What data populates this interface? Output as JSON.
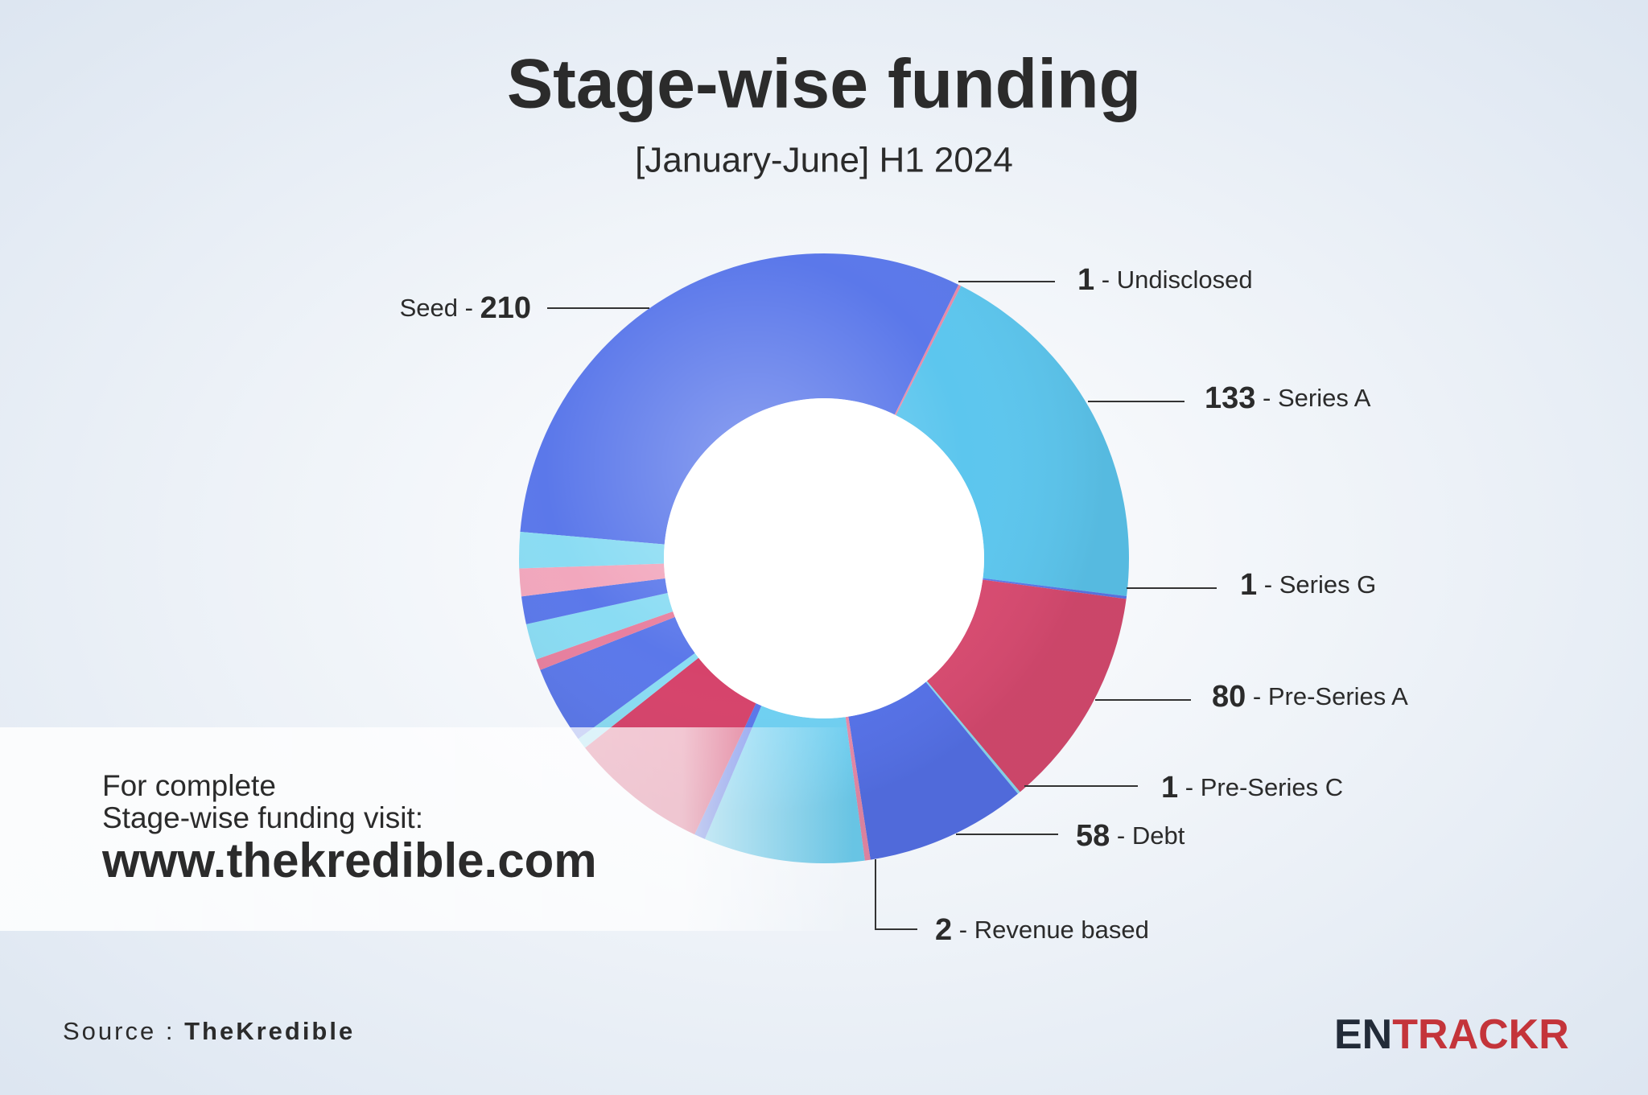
{
  "chart_data": {
    "type": "donut",
    "title": "Stage-wise funding",
    "subtitle": "[January-June] H1 2024",
    "label_separator": " - ",
    "categories": [
      "Seed",
      "Undisclosed",
      "Series A",
      "Series G",
      "Pre-Series A",
      "Pre-Series C",
      "Debt",
      "Revenue based",
      null,
      null,
      null,
      null,
      null,
      null,
      null,
      null,
      null,
      null
    ],
    "values": [
      210,
      1,
      133,
      1,
      80,
      1,
      58,
      2,
      58,
      4,
      50,
      4,
      28,
      4,
      13,
      10,
      10,
      13
    ],
    "colors": [
      "#5b78ea",
      "#e88aa8",
      "#5cc6ee",
      "#5b78ea",
      "#d84a70",
      "#8adcf3",
      "#5571e8",
      "#e88aa8",
      "#6fd0f2",
      "#5b78ea",
      "#d6436b",
      "#8adcf3",
      "#5b78ea",
      "#e8809f",
      "#8adcf3",
      "#5b78ea",
      "#f2a7bd",
      "#8adcf3"
    ]
  },
  "promo": {
    "line1": "For complete",
    "line2": "Stage-wise funding visit:",
    "url": "www.thekredible.com"
  },
  "source": {
    "label": "Source :",
    "name": "TheKredible"
  },
  "logo": {
    "dark": "EN",
    "red": "TRACKR"
  }
}
